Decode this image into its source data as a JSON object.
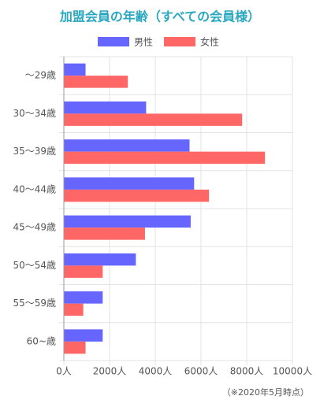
{
  "chart_data": {
    "type": "hbar",
    "title": "加盟会員の年齢（すべての会員様）",
    "categories": [
      "～29歳",
      "30～34歳",
      "35～39歳",
      "40～44歳",
      "45～49歳",
      "50～54歳",
      "55～59歳",
      "60~歳"
    ],
    "series": [
      {
        "name": "男性",
        "color": "#6666ff",
        "values": [
          950,
          3600,
          5500,
          5700,
          5550,
          3150,
          1700,
          1700
        ]
      },
      {
        "name": "女性",
        "color": "#ff6666",
        "values": [
          2800,
          7800,
          8800,
          6350,
          3550,
          1700,
          850,
          950
        ]
      }
    ],
    "xlim": [
      0,
      10000
    ],
    "xticks": [
      {
        "value": 0,
        "label": "0人"
      },
      {
        "value": 2000,
        "label": "2000人"
      },
      {
        "value": 4000,
        "label": "4000人"
      },
      {
        "value": 6000,
        "label": "6000人"
      },
      {
        "value": 8000,
        "label": "8000人"
      },
      {
        "value": 10000,
        "label": "10000人"
      }
    ],
    "grid": true,
    "note": "（※2020年5月時点）"
  }
}
